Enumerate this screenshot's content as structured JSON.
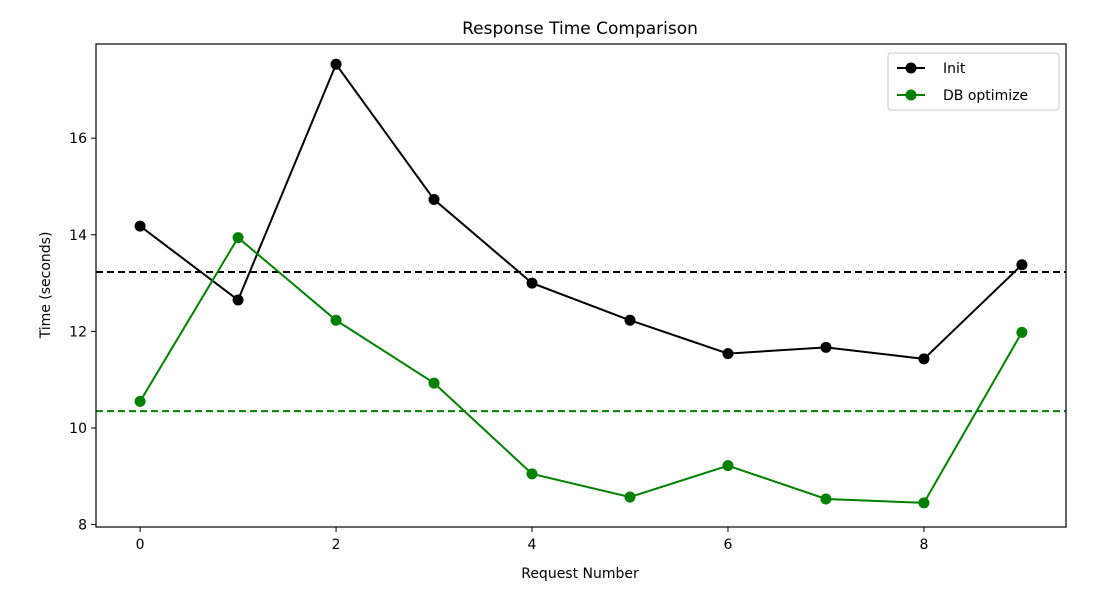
{
  "chart_data": {
    "type": "line",
    "title": "Response Time Comparison",
    "xlabel": "Request Number",
    "ylabel": "Time (seconds)",
    "x": [
      0,
      1,
      2,
      3,
      4,
      5,
      6,
      7,
      8,
      9
    ],
    "xlim": [
      -0.45,
      9.45
    ],
    "ylim": [
      7.95,
      17.95
    ],
    "xticks": [
      0,
      2,
      4,
      6,
      8
    ],
    "yticks": [
      8,
      10,
      12,
      14,
      16
    ],
    "grid": false,
    "legend_position": "top-right",
    "series": [
      {
        "name": "Init",
        "color": "#000000",
        "marker": "circle",
        "values": [
          14.18,
          12.65,
          17.53,
          14.73,
          13.0,
          12.23,
          11.54,
          11.67,
          11.43,
          13.38
        ],
        "mean": 13.23
      },
      {
        "name": "DB optimize",
        "color": "#008000",
        "marker": "circle",
        "values": [
          10.55,
          13.94,
          12.23,
          10.93,
          9.05,
          8.57,
          9.22,
          8.53,
          8.45,
          11.98
        ],
        "mean": 10.35
      }
    ],
    "reference_lines": [
      {
        "series": "Init",
        "y": 13.23,
        "style": "dashed",
        "color": "#000000"
      },
      {
        "series": "DB optimize",
        "y": 10.35,
        "style": "dashed",
        "color": "#008000"
      }
    ]
  }
}
